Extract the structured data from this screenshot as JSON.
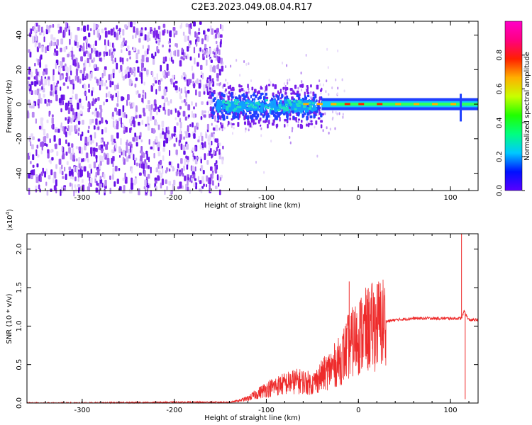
{
  "title": "C2E3.2023.049.08.04.R17",
  "colors": {
    "snr_line": "#ee2b2b",
    "frame": "#000000",
    "colorbar_stops": [
      "#5a00ff",
      "#0010ff",
      "#00c8ff",
      "#00ff80",
      "#20ff00",
      "#c8ff00",
      "#ffb000",
      "#ff2000",
      "#ff0080",
      "#ff00c8"
    ]
  },
  "chart_data": [
    {
      "type": "heatmap",
      "title": "C2E3.2023.049.08.04.R17",
      "xlabel": "Height of straight line (km)",
      "ylabel": "Frequency (Hz)",
      "xlim": [
        -360,
        130
      ],
      "ylim": [
        -50,
        48
      ],
      "xticks": [
        -300,
        -200,
        -100,
        0,
        100
      ],
      "xtick_labels": [
        "-300",
        "-200",
        "-100",
        "0",
        "100"
      ],
      "yticks": [
        -40,
        -20,
        0,
        20,
        40
      ],
      "ytick_labels": [
        "-40",
        "-20",
        "0",
        "20",
        "40"
      ],
      "colorbar": {
        "label": "Normalized spectral amplitude",
        "range": [
          0.0,
          1.0
        ],
        "ticks": [
          0.0,
          0.2,
          0.4,
          0.6,
          0.8
        ],
        "tick_labels": [
          "0.0",
          "0.2",
          "0.4",
          "0.6",
          "0.8"
        ]
      },
      "regions": [
        {
          "x_range": [
            -360,
            -150
          ],
          "freq_range": [
            -50,
            48
          ],
          "amplitude": 0.08,
          "description_level": "noise"
        },
        {
          "x_range": [
            -165,
            -40
          ],
          "freq_range": [
            -15,
            15
          ],
          "amplitude": 0.25
        },
        {
          "x_range": [
            -40,
            130
          ],
          "freq_range": [
            -3,
            3
          ],
          "amplitude": 0.45
        },
        {
          "x_range": [
            -30,
            110
          ],
          "freq_range": [
            -1,
            1
          ],
          "amplitude": 0.85
        }
      ],
      "grid": false
    },
    {
      "type": "line",
      "xlabel": "Height of straight line (km)",
      "ylabel": "SNR (10 * v/v)",
      "y_multiplier": "(x10^4)",
      "y_multiplier_base": "(x10",
      "y_multiplier_exp": "4",
      "y_multiplier_close": ")",
      "xlim": [
        -360,
        130
      ],
      "ylim": [
        0,
        2.2
      ],
      "xticks": [
        -300,
        -200,
        -100,
        0,
        100
      ],
      "xtick_labels": [
        "-300",
        "-200",
        "-100",
        "0",
        "100"
      ],
      "yticks": [
        0.0,
        0.5,
        1.0,
        1.5,
        2.0
      ],
      "ytick_labels": [
        "0.0",
        "0.5",
        "1.0",
        "1.5",
        "2.0"
      ],
      "series": [
        {
          "x": [
            -360,
            -300,
            -200,
            -140,
            -130,
            -120,
            -110,
            -100,
            -90,
            -80,
            -70,
            -60,
            -50,
            -40,
            -30,
            -20,
            -15,
            -10,
            -5,
            0,
            10,
            20,
            30,
            40,
            60,
            80,
            100,
            108,
            112,
            115,
            118,
            120,
            130
          ],
          "y": [
            0.0,
            0.0,
            0.01,
            0.01,
            0.03,
            0.06,
            0.12,
            0.18,
            0.22,
            0.25,
            0.28,
            0.28,
            0.25,
            0.35,
            0.45,
            0.55,
            0.65,
            0.75,
            0.8,
            0.88,
            0.95,
            1.02,
            1.06,
            1.08,
            1.1,
            1.1,
            1.1,
            1.1,
            1.1,
            1.2,
            1.12,
            1.08,
            1.08
          ]
        }
      ],
      "spikes": [
        {
          "x": -10,
          "y": 1.58
        },
        {
          "x": 10,
          "y": 1.35
        },
        {
          "x": 112,
          "y": 2.2
        },
        {
          "x": 116,
          "y": 0.05
        }
      ],
      "grid": false
    }
  ]
}
